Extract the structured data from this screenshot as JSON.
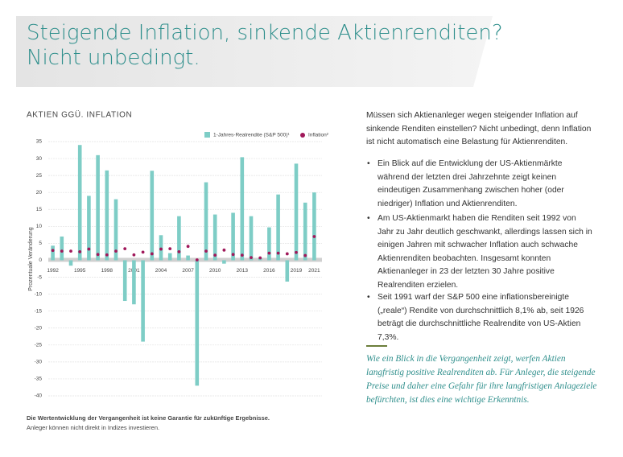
{
  "header": {
    "title_lines": [
      "Steigende Inflation, sinkende Aktienrenditen?",
      "Nicht unbedingt."
    ]
  },
  "chart_data": {
    "type": "bar",
    "title": "AKTIEN GGÜ. INFLATION",
    "ylabel": "Prozentuale Veränderung",
    "categories": [
      "1992",
      null,
      null,
      "1995",
      null,
      null,
      "1998",
      null,
      null,
      "2001",
      null,
      null,
      "2004",
      null,
      null,
      "2007",
      null,
      null,
      "2010",
      null,
      null,
      "2013",
      null,
      null,
      "2016",
      null,
      null,
      "2019",
      null,
      "2021"
    ],
    "series": [
      {
        "name": "1-Jahres-Realrendite (S&P 500)¹",
        "type": "bar",
        "color": "#7ecdc6",
        "values": [
          4.3,
          7,
          -1.6,
          34,
          19,
          31,
          26.5,
          18,
          -12,
          -13,
          -24,
          26.4,
          7.4,
          2.1,
          13,
          1.4,
          -37,
          23,
          13.5,
          -1,
          14,
          30.4,
          13,
          0.7,
          9.7,
          19.4,
          -6.3,
          28.5,
          17,
          20
        ]
      },
      {
        "name": "Inflation²",
        "type": "scatter",
        "color": "#a0185a",
        "values": [
          2.9,
          2.7,
          2.7,
          2.5,
          3.3,
          1.7,
          1.6,
          2.7,
          3.4,
          1.6,
          2.4,
          1.9,
          3.3,
          3.4,
          2.5,
          4.1,
          0.1,
          2.7,
          1.5,
          3.0,
          1.7,
          1.5,
          0.8,
          0.7,
          2.1,
          2.1,
          1.9,
          2.3,
          1.4,
          7.0
        ]
      }
    ],
    "ylim": [
      -40,
      35
    ],
    "yticks": [
      35,
      30,
      25,
      20,
      15,
      10,
      5,
      0,
      -5,
      -10,
      -15,
      -20,
      -25,
      -30,
      -35,
      -40
    ],
    "grid": true,
    "footnotes": [
      "Die Wertentwicklung der Vergangenheit ist keine Garantie für zukünftige Ergebnisse.",
      "Anleger können nicht direkt in Indizes investieren."
    ]
  },
  "text": {
    "intro": "Müssen sich Aktienanleger wegen steigender Inflation auf sinkende Renditen einstellen? Nicht unbedingt, denn Inflation ist nicht automatisch eine Belastung für Aktienrenditen.",
    "bullets": [
      "Ein Blick auf die Entwicklung der US-Aktienmärkte während der letzten drei Jahrzehnte zeigt keinen eindeutigen Zusammenhang zwischen hoher (oder niedriger) Inflation und Aktienrenditen.",
      "Am US-Aktienmarkt haben die Renditen seit 1992 von Jahr zu Jahr deutlich geschwankt, allerdings lassen sich in einigen Jahren mit schwacher Inflation auch schwache Aktienrenditen beobachten. Insgesamt konnten Aktienanleger in 23 der letzten 30 Jahre positive Realrenditen erzielen.",
      "Seit 1991 warf der S&P 500 eine inflationsbereinigte („reale“) Rendite von durchschnittlich 8,1% ab, seit 1926 beträgt die durchschnittliche Realrendite von US-Aktien 7,3%."
    ],
    "quote": "Wie ein Blick in die Vergangenheit zeigt, werfen Aktien langfristig positive Realrenditen ab. Für Anleger, die steigende Preise und daher eine Gefahr für ihre langfristigen Anlageziele befürchten, ist dies eine wichtige Erkenntnis."
  }
}
